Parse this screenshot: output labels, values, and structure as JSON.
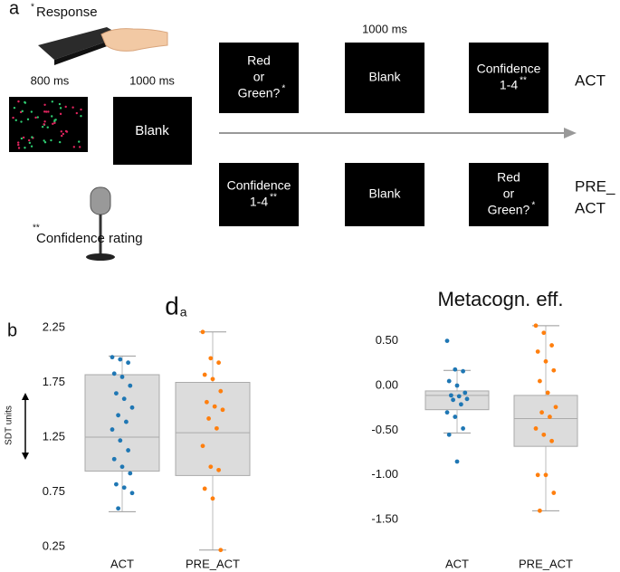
{
  "panel_a": {
    "label": "a",
    "response": "Response",
    "response_mark": "*",
    "stimulus_time": "800 ms",
    "blank_time_1": "1000 ms",
    "blank_1": "Blank",
    "confidence_rating": "Confidence rating",
    "confidence_mark": "**",
    "blank_time_2": "1000 ms",
    "rows": [
      {
        "name": [
          "ACT"
        ],
        "boxes": [
          {
            "lines": [
              "Red",
              "or",
              "Green?"
            ],
            "mark": "*"
          },
          {
            "lines": [
              "Blank"
            ]
          },
          {
            "lines": [
              "Confidence",
              "1-4"
            ],
            "mark": "**"
          }
        ]
      },
      {
        "name": [
          "PRE_",
          "ACT"
        ],
        "boxes": [
          {
            "lines": [
              "Confidence",
              "1-4"
            ],
            "mark": "**"
          },
          {
            "lines": [
              "Blank"
            ]
          },
          {
            "lines": [
              "Red",
              "or",
              "Green?"
            ],
            "mark": "*"
          }
        ]
      }
    ]
  },
  "panel_b": {
    "label": "b",
    "ylabel": "SDT units"
  },
  "chart_data": [
    {
      "type": "box",
      "title": "d",
      "title_sub": "a",
      "categories": [
        "ACT",
        "PRE_ACT"
      ],
      "colors": [
        "#1f77b4",
        "#ff7f0e"
      ],
      "boxes": [
        {
          "whisker_low": 0.57,
          "q1": 0.94,
          "median": 1.25,
          "q3": 1.82,
          "whisker_high": 1.99
        },
        {
          "whisker_low": 0.22,
          "q1": 0.9,
          "median": 1.29,
          "q3": 1.75,
          "whisker_high": 2.21
        }
      ],
      "points": [
        [
          1.98,
          1.96,
          1.93,
          1.83,
          1.8,
          1.72,
          1.65,
          1.6,
          1.52,
          1.45,
          1.39,
          1.32,
          1.22,
          1.13,
          1.05,
          0.98,
          0.92,
          0.82,
          0.79,
          0.74,
          0.6
        ],
        [
          2.21,
          1.97,
          1.93,
          1.82,
          1.78,
          1.67,
          1.57,
          1.53,
          1.5,
          1.42,
          1.33,
          1.17,
          0.98,
          0.95,
          0.78,
          0.69,
          0.22
        ]
      ],
      "ylim": [
        0.16,
        2.39
      ],
      "yticks": [
        0.25,
        0.75,
        1.25,
        1.75,
        2.25
      ]
    },
    {
      "type": "box",
      "title": "Metacogn. eff.",
      "categories": [
        "ACT",
        "PRE_ACT"
      ],
      "colors": [
        "#1f77b4",
        "#ff7f0e"
      ],
      "boxes": [
        {
          "whisker_low": -0.53,
          "q1": -0.27,
          "median": -0.11,
          "q3": -0.06,
          "whisker_high": 0.17
        },
        {
          "whisker_low": -1.4,
          "q1": -0.68,
          "median": -0.37,
          "q3": -0.11,
          "whisker_high": 0.67
        }
      ],
      "points": [
        [
          0.5,
          0.18,
          0.16,
          0.05,
          0.0,
          -0.08,
          -0.11,
          -0.12,
          -0.15,
          -0.16,
          -0.21,
          -0.3,
          -0.35,
          -0.48,
          -0.55,
          -0.85
        ],
        [
          0.67,
          0.59,
          0.45,
          0.38,
          0.27,
          0.17,
          0.05,
          -0.08,
          -0.24,
          -0.3,
          -0.35,
          -0.48,
          -0.55,
          -0.62,
          -1.0,
          -1.0,
          -1.2,
          -1.4
        ]
      ],
      "ylim": [
        -1.66,
        0.82
      ],
      "yticks": [
        {
          "value": 0.5,
          "label": "0.50"
        },
        {
          "value": 0,
          "label": "0.00"
        },
        {
          "value": -0.5,
          "label": "-0.50"
        },
        {
          "value": -1,
          "label": "-1.00"
        },
        {
          "value": -1.5,
          "label": "-1.50"
        }
      ]
    }
  ]
}
